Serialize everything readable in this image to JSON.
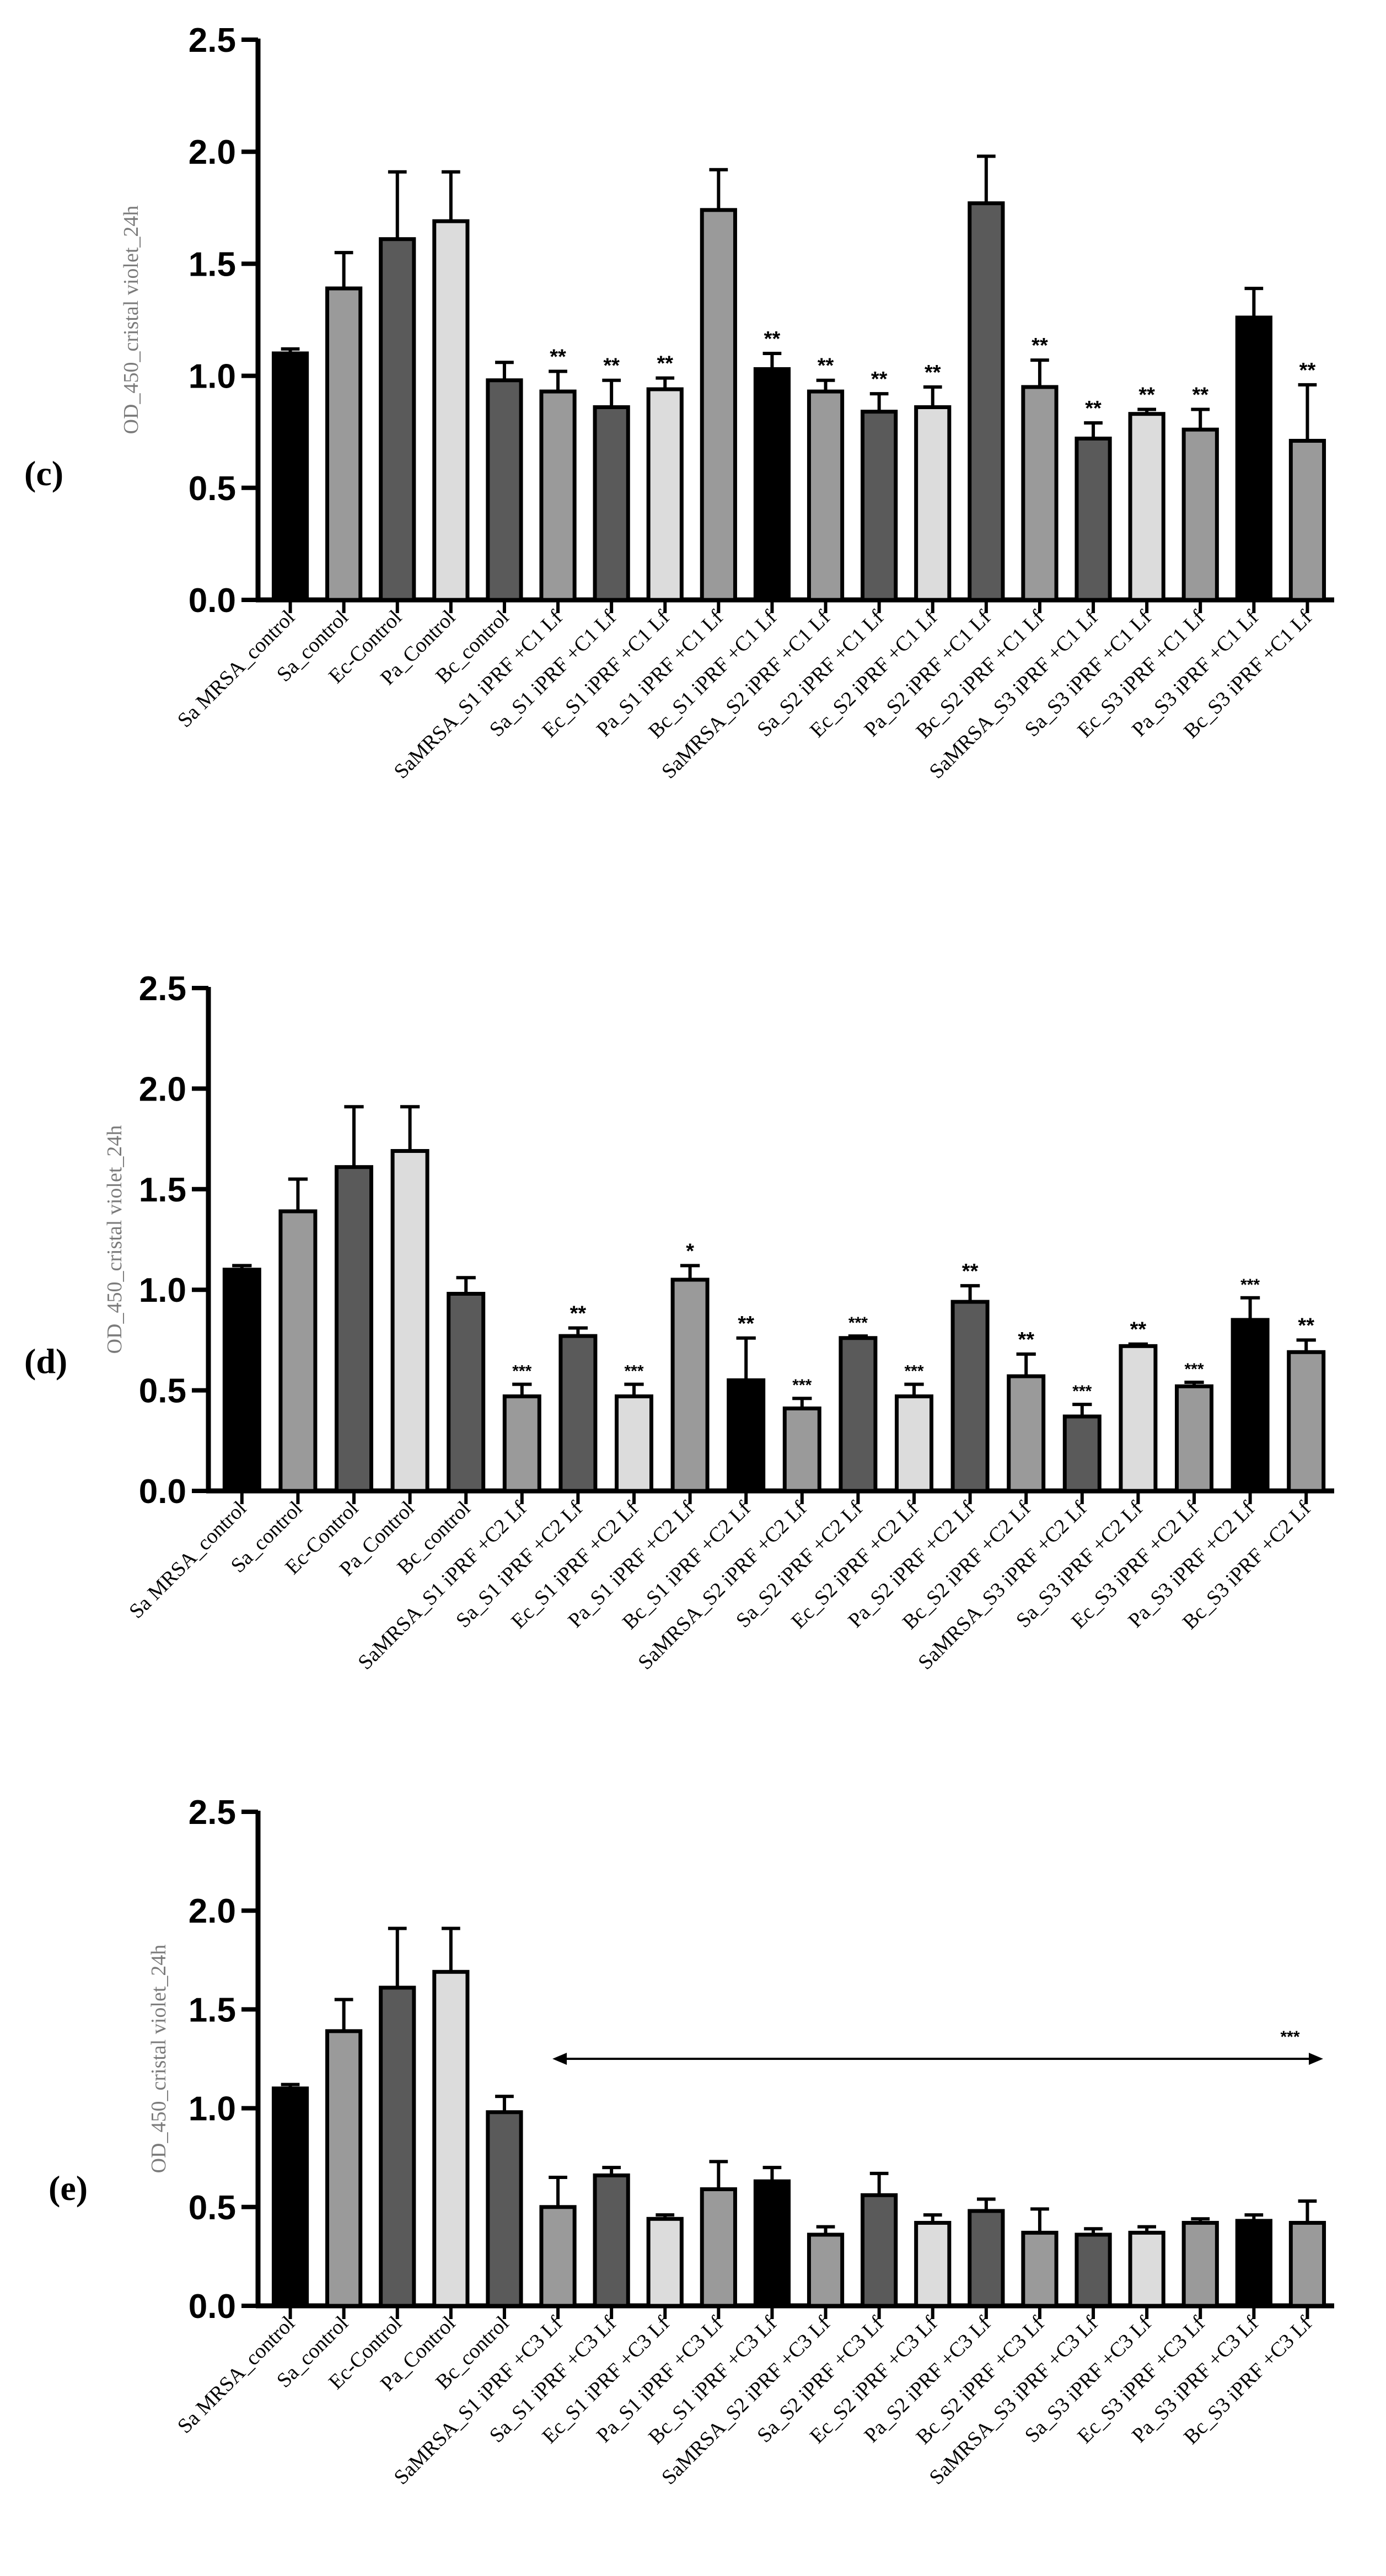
{
  "figure": {
    "colors": {
      "black": "#000000",
      "dark": "#5a5a5a",
      "mid": "#9a9a9a",
      "light": "#dcdcdc",
      "axis": "#000000",
      "arrow": "#000000"
    }
  },
  "chart_data": [
    {
      "panel_label": "(c)",
      "type": "bar",
      "ylabel": "OD_450_cristal violet_24h",
      "ylim": [
        0,
        2.5
      ],
      "yticks": [
        "0.0",
        "0.5",
        "1.0",
        "1.5",
        "2.0",
        "2.5"
      ],
      "categories": [
        "Sa MRSA_control",
        "Sa_control",
        "Ec-Control",
        "Pa_Control",
        "Bc_control",
        "SaMRSA_S1 iPRF +C1 Lf",
        "Sa_S1 iPRF +C1 Lf",
        "Ec_S1 iPRF +C1 Lf",
        "Pa_S1 iPRF +C1 Lf",
        "Bc_S1 iPRF +C1 Lf",
        "SaMRSA_S2 iPRF +C1 Lf",
        "Sa_S2 iPRF +C1 Lf",
        "Ec_S2 iPRF +C1 Lf",
        "Pa_S2 iPRF +C1 Lf",
        "Bc_S2 iPRF +C1 Lf",
        "SaMRSA_S3 iPRF +C1 Lf",
        "Sa_S3 iPRF +C1 Lf",
        "Ec_S3 iPRF +C1 Lf",
        "Pa_S3 iPRF +C1 Lf",
        "Bc_S3 iPRF +C1 Lf"
      ],
      "values": [
        1.1,
        1.39,
        1.61,
        1.69,
        0.98,
        0.93,
        0.86,
        0.94,
        1.74,
        1.03,
        0.93,
        0.84,
        0.86,
        1.77,
        0.95,
        0.72,
        0.83,
        0.76,
        1.26,
        0.71
      ],
      "errors": [
        0.02,
        0.16,
        0.3,
        0.22,
        0.08,
        0.09,
        0.12,
        0.05,
        0.18,
        0.07,
        0.05,
        0.08,
        0.09,
        0.21,
        0.12,
        0.07,
        0.02,
        0.09,
        0.13,
        0.25
      ],
      "colors": [
        "black",
        "mid",
        "dark",
        "light",
        "dark",
        "mid",
        "dark",
        "light",
        "mid",
        "black",
        "mid",
        "dark",
        "light",
        "dark",
        "mid",
        "dark",
        "light",
        "mid",
        "black",
        "mid"
      ],
      "significance": [
        "",
        "",
        "",
        "",
        "",
        "**",
        "**",
        "**",
        "",
        "**",
        "**",
        "**",
        "**",
        "",
        "**",
        "**",
        "**",
        "**",
        "",
        "**"
      ],
      "bracket_label": ""
    },
    {
      "panel_label": "(d)",
      "type": "bar",
      "ylabel": "OD_450_cristal violet_24h",
      "ylim": [
        0,
        2.5
      ],
      "yticks": [
        "0.0",
        "0.5",
        "1.0",
        "1.5",
        "2.0",
        "2.5"
      ],
      "categories": [
        "Sa MRSA_control",
        "Sa_control",
        "Ec-Control",
        "Pa_Control",
        "Bc_control",
        "SaMRSA_S1 iPRF +C2 Lf",
        "Sa_S1 iPRF +C2 Lf",
        "Ec_S1 iPRF +C2 Lf",
        "Pa_S1 iPRF +C2 Lf",
        "Bc_S1 iPRF +C2 Lf",
        "SaMRSA_S2 iPRF +C2 Lf",
        "Sa_S2 iPRF +C2 Lf",
        "Ec_S2 iPRF +C2 Lf",
        "Pa_S2 iPRF +C2 Lf",
        "Bc_S2 iPRF +C2 Lf",
        "SaMRSA_S3 iPRF +C2 Lf",
        "Sa_S3 iPRF +C2 Lf",
        "Ec_S3 iPRF +C2 Lf",
        "Pa_S3 iPRF +C2 Lf",
        "Bc_S3 iPRF +C2 Lf"
      ],
      "values": [
        1.1,
        1.39,
        1.61,
        1.69,
        0.98,
        0.47,
        0.77,
        0.47,
        1.05,
        0.55,
        0.41,
        0.76,
        0.47,
        0.94,
        0.57,
        0.37,
        0.72,
        0.52,
        0.85,
        0.69
      ],
      "errors": [
        0.02,
        0.16,
        0.3,
        0.22,
        0.08,
        0.06,
        0.04,
        0.06,
        0.07,
        0.21,
        0.05,
        0.01,
        0.06,
        0.08,
        0.11,
        0.06,
        0.01,
        0.02,
        0.11,
        0.06
      ],
      "colors": [
        "black",
        "mid",
        "dark",
        "light",
        "dark",
        "mid",
        "dark",
        "light",
        "mid",
        "black",
        "mid",
        "dark",
        "light",
        "dark",
        "mid",
        "dark",
        "light",
        "mid",
        "black",
        "mid"
      ],
      "significance": [
        "",
        "",
        "",
        "",
        "",
        "***",
        "**",
        "***",
        "*",
        "**",
        "***",
        "***",
        "***",
        "**",
        "**",
        "***",
        "**",
        "***",
        "***",
        "**"
      ],
      "bracket_label": ""
    },
    {
      "panel_label": "(e)",
      "type": "bar",
      "ylabel": "OD_450_cristal violet_24h",
      "ylim": [
        0,
        2.5
      ],
      "yticks": [
        "0.0",
        "0.5",
        "1.0",
        "1.5",
        "2.0",
        "2.5"
      ],
      "categories": [
        "Sa MRSA_control",
        "Sa_control",
        "Ec-Control",
        "Pa_Control",
        "Bc_control",
        "SaMRSA_S1 iPRF +C3 Lf",
        "Sa_S1 iPRF +C3 Lf",
        "Ec_S1 iPRF +C3 Lf",
        "Pa_S1 iPRF +C3 Lf",
        "Bc_S1 iPRF +C3 Lf",
        "SaMRSA_S2 iPRF +C3 Lf",
        "Sa_S2 iPRF +C3 Lf",
        "Ec_S2 iPRF +C3 Lf",
        "Pa_S2 iPRF +C3 Lf",
        "Bc_S2 iPRF +C3 Lf",
        "SaMRSA_S3 iPRF +C3 Lf",
        "Sa_S3 iPRF +C3 Lf",
        "Ec_S3 iPRF +C3 Lf",
        "Pa_S3 iPRF +C3 Lf",
        "Bc_S3 iPRF +C3 Lf"
      ],
      "values": [
        1.1,
        1.39,
        1.61,
        1.69,
        0.98,
        0.5,
        0.66,
        0.44,
        0.59,
        0.63,
        0.36,
        0.56,
        0.42,
        0.48,
        0.37,
        0.36,
        0.37,
        0.42,
        0.43,
        0.42
      ],
      "errors": [
        0.02,
        0.16,
        0.3,
        0.22,
        0.08,
        0.15,
        0.04,
        0.02,
        0.14,
        0.07,
        0.04,
        0.11,
        0.04,
        0.06,
        0.12,
        0.03,
        0.03,
        0.02,
        0.03,
        0.11
      ],
      "colors": [
        "black",
        "mid",
        "dark",
        "light",
        "dark",
        "mid",
        "dark",
        "light",
        "mid",
        "black",
        "mid",
        "dark",
        "light",
        "dark",
        "mid",
        "dark",
        "light",
        "mid",
        "black",
        "mid"
      ],
      "significance": [
        "",
        "",
        "",
        "",
        "",
        "",
        "",
        "",
        "",
        "",
        "",
        "",
        "",
        "",
        "",
        "",
        "",
        "",
        "",
        ""
      ],
      "bracket_label": "***"
    }
  ]
}
